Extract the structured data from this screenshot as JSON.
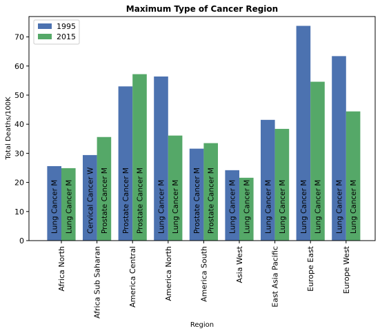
{
  "chart_data": {
    "type": "bar",
    "title": "Maximum Type of Cancer Region",
    "xlabel": "Region",
    "ylabel": "Total Deaths/100K",
    "ylim": [
      0,
      77
    ],
    "yticks": [
      0,
      10,
      20,
      30,
      40,
      50,
      60,
      70
    ],
    "categories": [
      "Africa North",
      "Africa Sub Saharan",
      "America Central",
      "America North",
      "America South",
      "Asia West",
      "East Asia Pacific",
      "Europe East",
      "Europe West"
    ],
    "series": [
      {
        "name": "1995",
        "color": "#4c72b0",
        "values": [
          25.6,
          29.4,
          53.0,
          56.4,
          31.6,
          24.2,
          41.5,
          73.8,
          63.4
        ],
        "labels": [
          "Lung Cancer  M",
          "Cervical Cancer  W",
          "Prostate Cancer  M",
          "Lung Cancer  M",
          "Prostate Cancer  M",
          "Lung Cancer  M",
          "Lung Cancer  M",
          "Lung Cancer  M",
          "Lung Cancer  M"
        ]
      },
      {
        "name": "2015",
        "color": "#55a868",
        "values": [
          24.9,
          35.6,
          57.2,
          36.1,
          33.5,
          21.6,
          38.4,
          54.6,
          44.4
        ],
        "labels": [
          "Lung Cancer  M",
          "Prostate Cancer  M",
          "Prostate Cancer  M",
          "Lung Cancer  M",
          "Prostate Cancer  M",
          "Lung Cancer  M",
          "Lung Cancer  M",
          "Lung Cancer  M",
          "Lung Cancer  M"
        ]
      }
    ],
    "legend": "top-left",
    "grid": false
  }
}
